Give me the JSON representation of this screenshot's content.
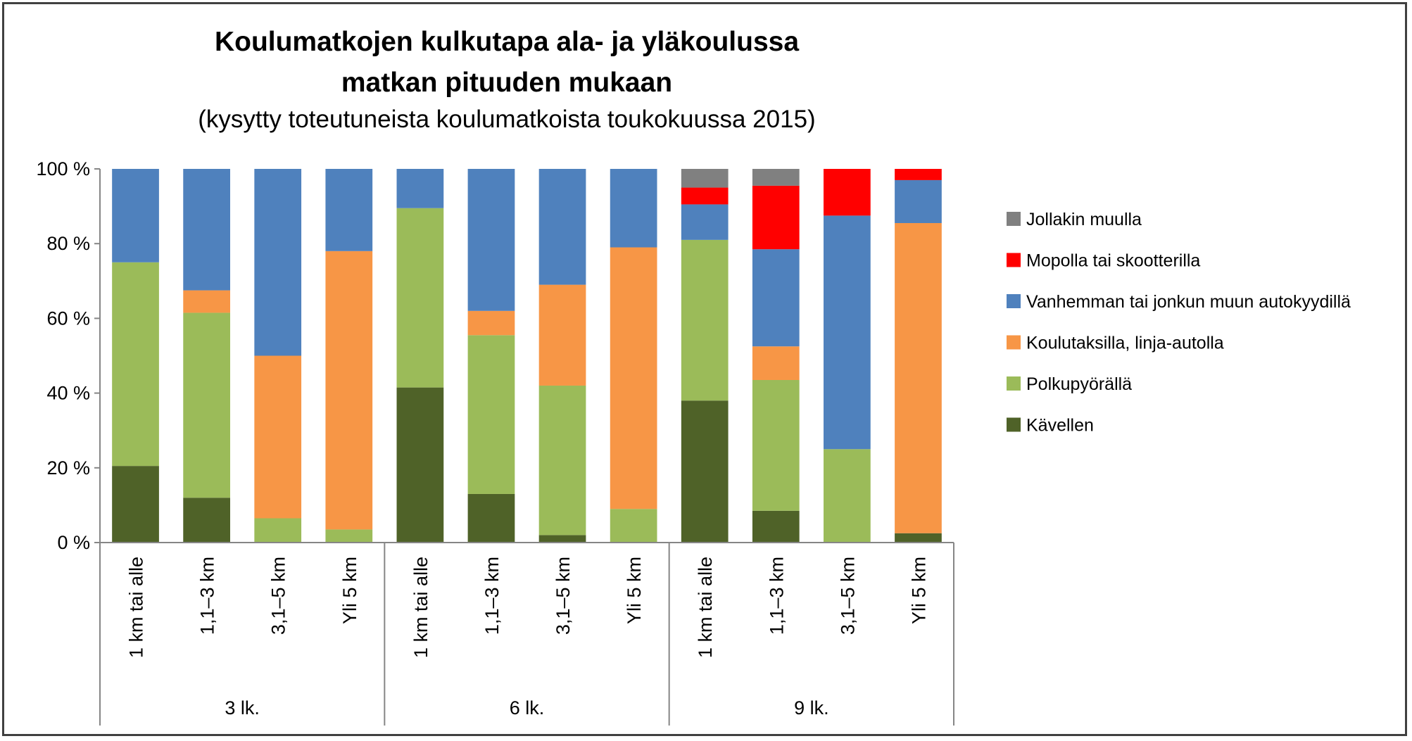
{
  "chart_data": {
    "type": "bar",
    "stacked": true,
    "title": "Koulumatkojen kulkutapa ala- ja yläkoulussa matkan pituuden mukaan",
    "title_lines": [
      "Koulumatkojen kulkutapa ala- ja yläkoulussa",
      "matkan pituuden mukaan"
    ],
    "subtitle": "(kysytty toteutuneista koulumatkoista toukokuussa 2015)",
    "groups": [
      {
        "label": "3 lk.",
        "categories": [
          "1 km tai alle",
          "1,1–3 km",
          "3,1–5 km",
          "Yli 5 km"
        ]
      },
      {
        "label": "6 lk.",
        "categories": [
          "1 km tai alle",
          "1,1–3 km",
          "3,1–5 km",
          "Yli 5 km"
        ]
      },
      {
        "label": "9 lk.",
        "categories": [
          "1 km tai alle",
          "1,1–3 km",
          "3,1–5 km",
          "Yli 5 km"
        ]
      }
    ],
    "ylim": [
      0,
      100
    ],
    "yticks": [
      "0 %",
      "20 %",
      "40 %",
      "60 %",
      "80 %",
      "100 %"
    ],
    "grid": false,
    "legend_position": "right",
    "series": [
      {
        "name": "Kävellen",
        "color": "#4f6228",
        "values": [
          20.5,
          12,
          0,
          0,
          41.5,
          13,
          2,
          0,
          38,
          8.5,
          0,
          2.5
        ]
      },
      {
        "name": "Polkupyörällä",
        "color": "#9bbb59",
        "values": [
          54.5,
          49.5,
          6.5,
          3.5,
          48,
          42.5,
          40,
          9,
          43,
          35,
          25,
          0
        ]
      },
      {
        "name": "Koulutaksilla, linja-autolla",
        "color": "#f79646",
        "values": [
          0,
          6,
          43.5,
          74.5,
          0,
          6.5,
          27,
          70,
          0,
          9,
          0,
          83
        ]
      },
      {
        "name": "Vanhemman tai jonkun muun autokyydillä",
        "color": "#4f81bd",
        "values": [
          25,
          32.5,
          50,
          22,
          10.5,
          38,
          31,
          21,
          9.5,
          26,
          62.5,
          11.5
        ]
      },
      {
        "name": "Mopolla tai skootterilla",
        "color": "#ff0000",
        "values": [
          0,
          0,
          0,
          0,
          0,
          0,
          0,
          0,
          4.5,
          17,
          12.5,
          3
        ]
      },
      {
        "name": "Jollakin muulla",
        "color": "#808080",
        "values": [
          0,
          0,
          0,
          0,
          0,
          0,
          0,
          0,
          5,
          4.5,
          0,
          0
        ]
      }
    ]
  }
}
